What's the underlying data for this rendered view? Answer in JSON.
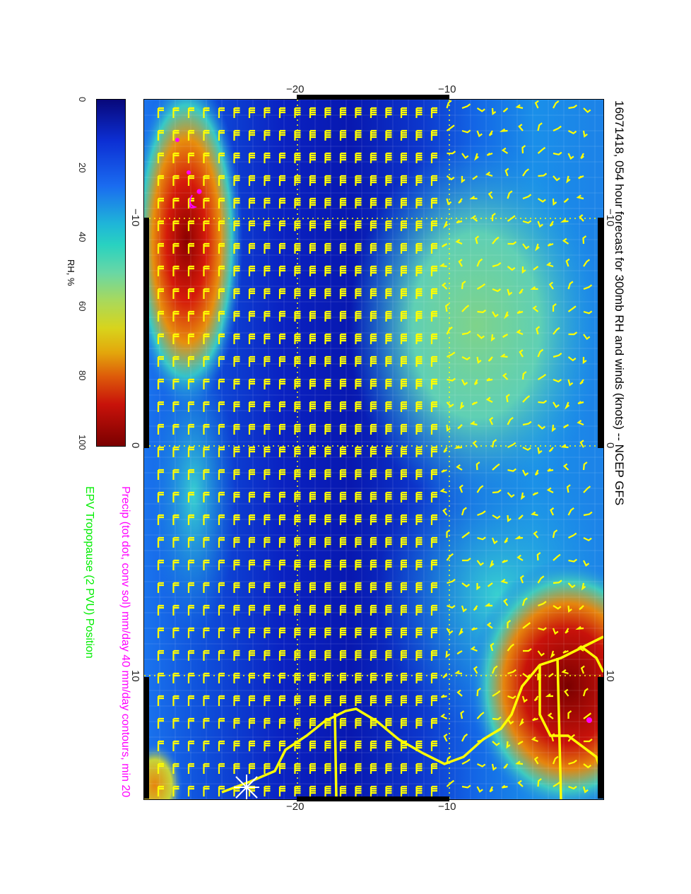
{
  "title": "16071418, 054 hour forecast for 300mb RH and winds (knots) -- NCEP GFS",
  "precip_caption": "Precip (tot dot, conv sol) mm/day 40 mm/day contours, min 20",
  "epv_caption": "EPV Tropopause (2 PVU) Position",
  "colorbar": {
    "label": "RH, %",
    "ticks": [
      "0",
      "20",
      "40",
      "60",
      "80",
      "100"
    ]
  },
  "axes": {
    "top_ticks": [
      "−20",
      "−10"
    ],
    "bottom_ticks": [
      "−20",
      "−10"
    ],
    "left_ticks": [
      "−10",
      "0",
      "10"
    ],
    "right_ticks": [
      "−10",
      "0",
      "10"
    ]
  },
  "colors": {
    "rh_dry": "#0a1fb8",
    "rh_wet": "#8b0000",
    "wind_barbs": "#ffff00",
    "coastline": "#ffff00",
    "precip": "#ff00ff",
    "epv": "#00ff00"
  },
  "icons": {
    "marker": "asterisk-icon"
  }
}
